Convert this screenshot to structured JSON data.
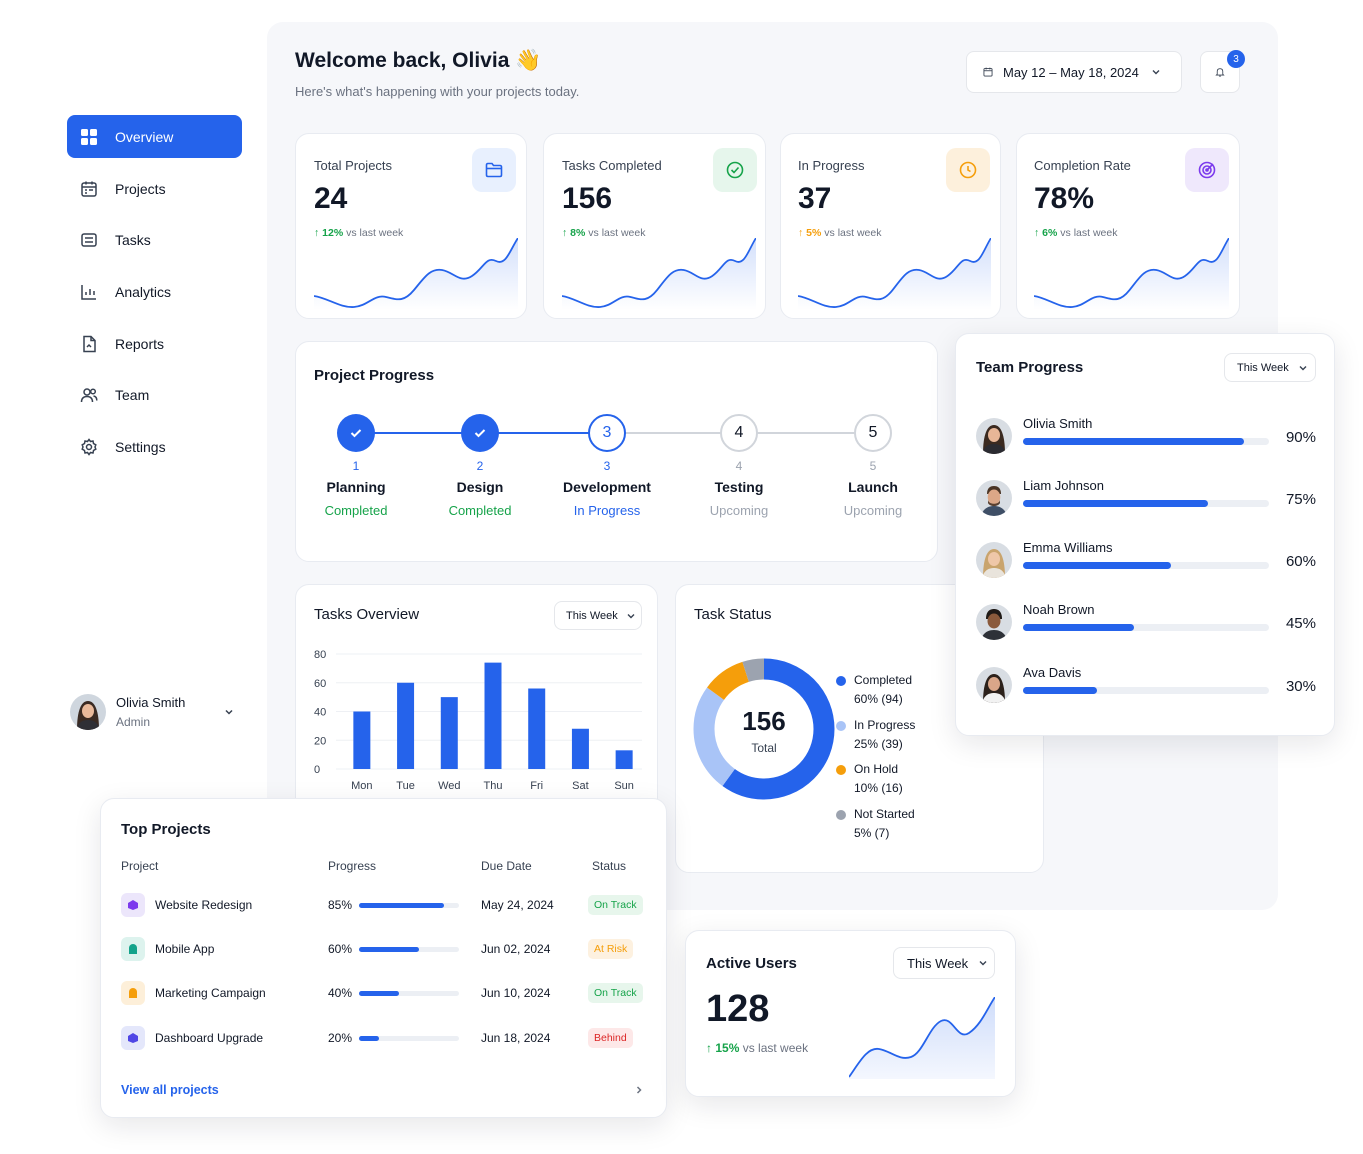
{
  "sidebar": {
    "items": [
      {
        "label": "Overview",
        "icon": "grid-icon"
      },
      {
        "label": "Projects",
        "icon": "calendar-icon"
      },
      {
        "label": "Tasks",
        "icon": "list-icon"
      },
      {
        "label": "Analytics",
        "icon": "chart-icon"
      },
      {
        "label": "Reports",
        "icon": "document-icon"
      },
      {
        "label": "Team",
        "icon": "users-icon"
      },
      {
        "label": "Settings",
        "icon": "gear-icon"
      }
    ],
    "user": {
      "name": "Olivia Smith",
      "role": "Admin"
    }
  },
  "header": {
    "title": "Welcome back, Olivia 👋",
    "subtitle": "Here's what's happening with your projects today.",
    "date_range": "May 12 – May 18, 2024",
    "notification_count": "3"
  },
  "stats": [
    {
      "label": "Total Projects",
      "value": "24",
      "delta": "12%",
      "delta_text": "vs last week",
      "accent": "#2563eb",
      "icon_bg": "#e8f0fe"
    },
    {
      "label": "Tasks Completed",
      "value": "156",
      "delta": "8%",
      "delta_text": "vs last week",
      "accent": "#16a34a",
      "icon_bg": "#e6f6ec"
    },
    {
      "label": "In Progress",
      "value": "37",
      "delta": "5%",
      "delta_text": "vs last week",
      "accent": "#f59e0b",
      "icon_bg": "#fdf0dc"
    },
    {
      "label": "Completion Rate",
      "value": "78%",
      "delta": "6%",
      "delta_text": "vs last week",
      "accent": "#7c3aed",
      "icon_bg": "#efe8fc"
    }
  ],
  "project_progress": {
    "title": "Project Progress",
    "steps": [
      {
        "num": "1",
        "name": "Planning",
        "status": "Completed",
        "state": "done"
      },
      {
        "num": "2",
        "name": "Design",
        "status": "Completed",
        "state": "done"
      },
      {
        "num": "3",
        "name": "Development",
        "status": "In Progress",
        "state": "active"
      },
      {
        "num": "4",
        "name": "Testing",
        "status": "Upcoming",
        "state": "upcoming"
      },
      {
        "num": "5",
        "name": "Launch",
        "status": "Upcoming",
        "state": "upcoming"
      }
    ]
  },
  "team_progress": {
    "title": "Team Progress",
    "filter": "This Week",
    "members": [
      {
        "name": "Olivia Smith",
        "pct_label": "90%",
        "pct": 0.9
      },
      {
        "name": "Liam Johnson",
        "pct_label": "75%",
        "pct": 0.75
      },
      {
        "name": "Emma Williams",
        "pct_label": "60%",
        "pct": 0.6
      },
      {
        "name": "Noah Brown",
        "pct_label": "45%",
        "pct": 0.45
      },
      {
        "name": "Ava Davis",
        "pct_label": "30%",
        "pct": 0.3
      }
    ]
  },
  "tasks_overview": {
    "title": "Tasks Overview",
    "filter": "This Week"
  },
  "chart_data": {
    "type": "bar",
    "categories": [
      "Mon",
      "Tue",
      "Wed",
      "Thu",
      "Fri",
      "Sat",
      "Sun"
    ],
    "values": [
      40,
      60,
      50,
      74,
      56,
      28,
      13
    ],
    "yticks": [
      "80",
      "60",
      "40",
      "20",
      "0"
    ],
    "ylim": [
      0,
      80
    ],
    "grid": true,
    "color": "#2563eb"
  },
  "task_status": {
    "title": "Task Status",
    "center_value": "156",
    "center_label": "Total",
    "segments": [
      {
        "label": "Completed",
        "detail": "60% (94)",
        "value": 60,
        "color": "#2563eb"
      },
      {
        "label": "In Progress",
        "detail": "25% (39)",
        "value": 25,
        "color": "#a9c4f7"
      },
      {
        "label": "On Hold",
        "detail": "10% (16)",
        "value": 10,
        "color": "#f59e0b"
      },
      {
        "label": "Not Started",
        "detail": "5% (7)",
        "value": 5,
        "color": "#9ca3af"
      }
    ]
  },
  "top_projects": {
    "title": "Top Projects",
    "columns": [
      "Project",
      "Progress",
      "Due Date",
      "Status"
    ],
    "rows": [
      {
        "name": "Website Redesign",
        "pct_label": "85%",
        "pct": 0.85,
        "due": "May 24, 2024",
        "status": "On Track",
        "status_color": "#16a34a",
        "status_bg": "#e7f6ec",
        "icon_color": "#7c3aed",
        "icon_bg": "#ece6fb"
      },
      {
        "name": "Mobile App",
        "pct_label": "60%",
        "pct": 0.6,
        "due": "Jun 02, 2024",
        "status": "At Risk",
        "status_color": "#f59e0b",
        "status_bg": "#fdf1e0",
        "icon_color": "#14a38b",
        "icon_bg": "#ddf3ee"
      },
      {
        "name": "Marketing Campaign",
        "pct_label": "40%",
        "pct": 0.4,
        "due": "Jun 10, 2024",
        "status": "On Track",
        "status_color": "#16a34a",
        "status_bg": "#e7f6ec",
        "icon_color": "#f59e0b",
        "icon_bg": "#fdefd9"
      },
      {
        "name": "Dashboard Upgrade",
        "pct_label": "20%",
        "pct": 0.2,
        "due": "Jun 18, 2024",
        "status": "Behind",
        "status_color": "#dc2626",
        "status_bg": "#fde8e8",
        "icon_color": "#4f46e5",
        "icon_bg": "#e4e7fb"
      }
    ],
    "view_all": "View all projects"
  },
  "active_users": {
    "title": "Active Users",
    "filter": "This Week",
    "value": "128",
    "delta": "15%",
    "delta_text": "vs last week"
  }
}
